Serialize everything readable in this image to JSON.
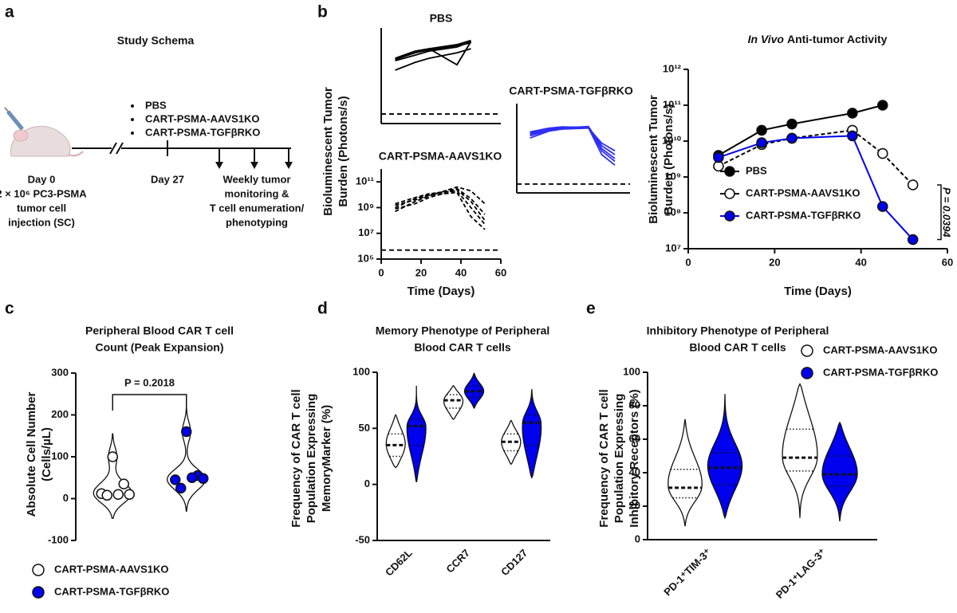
{
  "panel_labels": [
    "a",
    "b",
    "c",
    "d",
    "e"
  ],
  "schema": {
    "title": "Study Schema",
    "groups": [
      "PBS",
      "CART-PSMA-AAVS1KO",
      "CART-PSMA-TGFβRKO"
    ],
    "day0": "Day 0",
    "injection": [
      "2 × 10⁶ PC3-PSMA",
      "tumor cell",
      "injection (SC)"
    ],
    "day27": "Day 27",
    "monitoring": [
      "Weekly tumor",
      "monitoring &",
      "T cell enumeration/",
      "phenotyping"
    ]
  },
  "chart_data": [
    {
      "type": "line",
      "title": "PBS",
      "x": [
        7,
        17,
        24,
        38,
        45,
        52
      ],
      "xlim": [
        0,
        60
      ],
      "ylim": [
        100000.0,
        1000000000000.0
      ],
      "log_y": true,
      "dash": false,
      "threshold": 500000.0,
      "series": [
        {
          "color": "#000000",
          "values": [
            5000000000.0,
            15000000000.0,
            25000000000.0,
            50000000000.0,
            80000000000.0,
            null
          ]
        },
        {
          "color": "#000000",
          "values": [
            4000000000.0,
            10000000000.0,
            20000000000.0,
            40000000000.0,
            100000000000.0,
            null
          ]
        },
        {
          "color": "#000000",
          "values": [
            6000000000.0,
            20000000000.0,
            30000000000.0,
            60000000000.0,
            120000000000.0,
            null
          ]
        },
        {
          "color": "#000000",
          "values": [
            800000000.0,
            3000000000.0,
            6000000000.0,
            15000000000.0,
            30000000000.0,
            null
          ]
        },
        {
          "color": "#000000",
          "values": [
            5000000000.0,
            15000000000.0,
            30000000000.0,
            2000000000.0,
            100000000000.0,
            null
          ]
        }
      ]
    },
    {
      "type": "line",
      "title": "CART-PSMA-AAVS1KO",
      "ylabel": [
        "Bioluminescent Tumor",
        "Burden (Photons/s)"
      ],
      "xlabel": "Time (Days)",
      "x": [
        7,
        17,
        24,
        38,
        45,
        52
      ],
      "xlim": [
        0,
        60
      ],
      "xticks": [
        0,
        20,
        40,
        60
      ],
      "ylim": [
        100000.0,
        1000000000000.0
      ],
      "log_y": true,
      "yticks": [
        {
          "value": 100000.0,
          "label": "10⁵"
        },
        {
          "value": 10000000.0,
          "label": "10⁷"
        },
        {
          "value": 1000000000.0,
          "label": "10⁹"
        },
        {
          "value": 100000000000.0,
          "label": "10¹¹"
        }
      ],
      "dash": true,
      "threshold": 500000.0,
      "series": [
        {
          "color": "#000000",
          "values": [
            1000000000.0,
            5000000000.0,
            10000000000.0,
            30000000000.0,
            5000000000.0,
            300000000.0
          ]
        },
        {
          "color": "#000000",
          "values": [
            2000000000.0,
            6000000000.0,
            12000000000.0,
            20000000000.0,
            1000000000.0,
            50000000.0
          ]
        },
        {
          "color": "#000000",
          "values": [
            500000000.0,
            3000000000.0,
            8000000000.0,
            40000000000.0,
            20000000000.0,
            2000000000.0
          ]
        },
        {
          "color": "#000000",
          "values": [
            1500000000.0,
            4000000000.0,
            9000000000.0,
            15000000000.0,
            200000000.0,
            20000000.0
          ]
        },
        {
          "color": "#000000",
          "values": [
            800000000.0,
            2000000000.0,
            6000000000.0,
            25000000000.0,
            3000000000.0,
            100000000.0
          ]
        }
      ]
    },
    {
      "type": "line",
      "title": "CART-PSMA-TGFβRKO",
      "x": [
        7,
        17,
        24,
        38,
        45,
        52
      ],
      "xlim": [
        0,
        60
      ],
      "ylim": [
        100000.0,
        1000000000000.0
      ],
      "log_y": true,
      "dash": false,
      "threshold": 500000.0,
      "series": [
        {
          "color": "#2f2ff5",
          "values": [
            5000000000.0,
            10000000000.0,
            14000000000.0,
            15000000000.0,
            500000000.0,
            100000000.0
          ]
        },
        {
          "color": "#2f2ff5",
          "values": [
            3000000000.0,
            8000000000.0,
            12000000000.0,
            16000000000.0,
            200000000.0,
            30000000.0
          ]
        },
        {
          "color": "#2f2ff5",
          "values": [
            6000000000.0,
            12000000000.0,
            15000000000.0,
            13000000000.0,
            100000000.0,
            15000000.0
          ]
        },
        {
          "color": "#2f2ff5",
          "values": [
            4000000000.0,
            9000000000.0,
            11000000000.0,
            14000000000.0,
            300000000.0,
            50000000.0
          ]
        },
        {
          "color": "#2f2ff5",
          "values": [
            2000000000.0,
            7000000000.0,
            10000000000.0,
            12000000000.0,
            800000000.0,
            200000000.0
          ]
        }
      ]
    },
    {
      "type": "line",
      "title_prefix": "In Vivo",
      "title": "Anti-tumor Activity",
      "ylabel": [
        "Bioluminescent Tumor",
        "Burden (Photons/s)"
      ],
      "xlabel": "Time (Days)",
      "x": [
        7,
        17,
        24,
        38,
        45,
        52
      ],
      "xlim": [
        0,
        60
      ],
      "xticks": [
        0,
        20,
        40,
        60
      ],
      "ylim": [
        10000000.0,
        1000000000000.0
      ],
      "log_y": true,
      "yticks": [
        {
          "value": 10000000.0,
          "label": "10⁷"
        },
        {
          "value": 100000000.0,
          "label": "10⁸"
        },
        {
          "value": 1000000000.0,
          "label": "10⁹"
        },
        {
          "value": 10000000000.0,
          "label": "10¹⁰"
        },
        {
          "value": 100000000000.0,
          "label": "10¹¹"
        },
        {
          "value": 1000000000000.0,
          "label": "10¹²"
        }
      ],
      "markers": true,
      "legend": "center left",
      "annotation": "P = 0.0394",
      "series": [
        {
          "name": "PBS",
          "color": "#000000",
          "values": [
            4000000000.0,
            20000000000.0,
            30000000000.0,
            60000000000.0,
            100000000000.0,
            null
          ]
        },
        {
          "name": "CART-PSMA-AAVS1KO",
          "color": "#000000",
          "marker_fill": "#ffffff",
          "dash": true,
          "values": [
            2000000000.0,
            8000000000.0,
            12000000000.0,
            20000000000.0,
            4500000000.0,
            600000000.0
          ]
        },
        {
          "name": "CART-PSMA-TGFβRKO",
          "color": "#0000ee",
          "values": [
            3500000000.0,
            9000000000.0,
            12000000000.0,
            14000000000.0,
            150000000.0,
            18000000.0
          ]
        }
      ]
    },
    {
      "type": "violin",
      "title": [
        "Peripheral Blood CAR T cell",
        "Count (Peak Expansion)"
      ],
      "ylabel": [
        "Absolute Cell Number",
        "(Cells/µL)"
      ],
      "ylim": [
        -100,
        300
      ],
      "yticks": [
        -100,
        0,
        100,
        200,
        300
      ],
      "legend": "lower left",
      "annotation": "P = 0.2018",
      "series": [
        {
          "name": "CART-PSMA-AAVS1KO",
          "color": "#ffffff",
          "values": [
            100,
            35,
            12,
            10,
            8,
            10
          ]
        },
        {
          "name": "CART-PSMA-TGFβRKO",
          "color": "#0000ee",
          "values": [
            160,
            55,
            45,
            50,
            25,
            48
          ]
        }
      ]
    },
    {
      "type": "violin_stats",
      "title": [
        "Memory Phenotype of Peripheral",
        "Blood CAR T cells"
      ],
      "ylabel": [
        "Frequency of CAR T cell",
        "Population Expressing",
        "MemoryMarker (%)"
      ],
      "categories": [
        "CD62L",
        "CCR7",
        "CD127"
      ],
      "ylim": [
        -50,
        100
      ],
      "yticks": [
        -50,
        0,
        50,
        100
      ],
      "series": [
        {
          "color": "#ffffff",
          "min": [
            15,
            58,
            18
          ],
          "q1": [
            25,
            68,
            30
          ],
          "median": [
            35,
            75,
            38
          ],
          "q3": [
            45,
            80,
            45
          ],
          "max": [
            62,
            88,
            57
          ]
        },
        {
          "color": "#0000ee",
          "min": [
            2,
            68,
            6
          ],
          "q1": [
            35,
            78,
            35
          ],
          "median": [
            52,
            83,
            55
          ],
          "q3": [
            58,
            88,
            62
          ],
          "max": [
            88,
            99,
            85
          ]
        }
      ]
    },
    {
      "type": "violin_stats",
      "title": [
        "Inhibitory Phenotype of Peripheral",
        "Blood CAR T cells"
      ],
      "ylabel": [
        "Frequency of CAR T cell",
        "Population Expressing",
        "Inhibitory Receptors (%)"
      ],
      "categories": [
        "PD-1⁺TIM-3⁺",
        "PD-1⁺LAG-3⁺"
      ],
      "ylim": [
        0,
        100
      ],
      "yticks": [
        0,
        20,
        40,
        60,
        80,
        100
      ],
      "legend": "upper right",
      "series": [
        {
          "name": "CART-PSMA-AAVS1KO",
          "color": "#ffffff",
          "min": [
            8,
            13
          ],
          "q1": [
            25,
            41
          ],
          "median": [
            31,
            49
          ],
          "q3": [
            42,
            66
          ],
          "max": [
            72,
            93
          ]
        },
        {
          "name": "CART-PSMA-TGFβRKO",
          "color": "#0000ee",
          "min": [
            13,
            11
          ],
          "q1": [
            33,
            32
          ],
          "median": [
            43,
            39
          ],
          "q3": [
            52,
            50
          ],
          "max": [
            87,
            70
          ]
        }
      ]
    }
  ]
}
